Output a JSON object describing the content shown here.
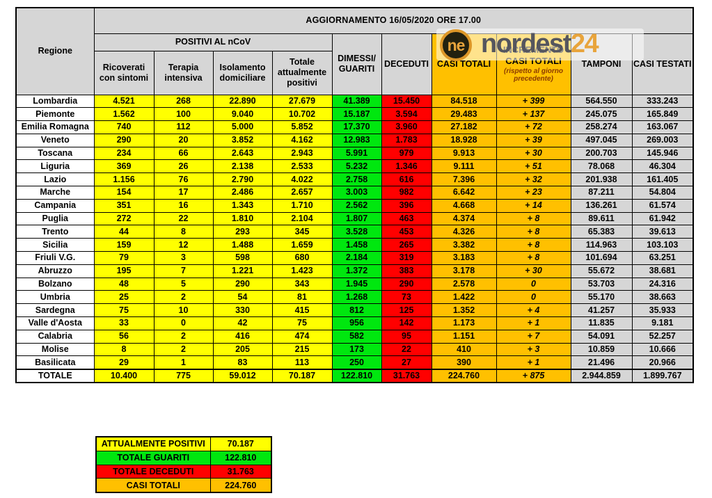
{
  "chart_data": {
    "type": "table",
    "title": "AGGIORNAMENTO 16/05/2020 ORE 17.00",
    "corner_header": "Regione",
    "group_header": "POSITIVI AL nCoV",
    "sub_headers": [
      "Ricoverati con sintomi",
      "Terapia intensiva",
      "Isolamento domiciliare",
      "Totale attualmente positivi"
    ],
    "headers": {
      "dimessi": "DIMESSI/ GUARITI",
      "deceduti": "DECEDUTI",
      "casi_totali": "CASI TOTALI",
      "incremento_line1": "INCREMENTO",
      "incremento_line2": "CASI  TOTALI",
      "incremento_note": "(rispetto al giorno precedente)",
      "tamponi": "TAMPONI",
      "casi_testati": "CASI TESTATI"
    },
    "columns": [
      "Regione",
      "Ricoverati con sintomi",
      "Terapia intensiva",
      "Isolamento domiciliare",
      "Totale attualmente positivi",
      "DIMESSI/GUARITI",
      "DECEDUTI",
      "CASI TOTALI",
      "INCREMENTO CASI TOTALI (rispetto al giorno precedente)",
      "TAMPONI",
      "CASI TESTATI"
    ],
    "rows": [
      {
        "region": "Lombardia",
        "is_total": false,
        "values": [
          "4.521",
          "268",
          "22.890",
          "27.679",
          "41.389",
          "15.450",
          "84.518",
          "+ 399",
          "564.550",
          "333.243"
        ]
      },
      {
        "region": "Piemonte",
        "is_total": false,
        "values": [
          "1.562",
          "100",
          "9.040",
          "10.702",
          "15.187",
          "3.594",
          "29.483",
          "+ 137",
          "245.075",
          "165.849"
        ]
      },
      {
        "region": "Emilia Romagna",
        "is_total": false,
        "values": [
          "740",
          "112",
          "5.000",
          "5.852",
          "17.370",
          "3.960",
          "27.182",
          "+ 72",
          "258.274",
          "163.067"
        ]
      },
      {
        "region": "Veneto",
        "is_total": false,
        "values": [
          "290",
          "20",
          "3.852",
          "4.162",
          "12.983",
          "1.783",
          "18.928",
          "+ 39",
          "497.045",
          "269.003"
        ]
      },
      {
        "region": "Toscana",
        "is_total": false,
        "values": [
          "234",
          "66",
          "2.643",
          "2.943",
          "5.991",
          "979",
          "9.913",
          "+ 30",
          "200.703",
          "145.946"
        ]
      },
      {
        "region": "Liguria",
        "is_total": false,
        "values": [
          "369",
          "26",
          "2.138",
          "2.533",
          "5.232",
          "1.346",
          "9.111",
          "+ 51",
          "78.068",
          "46.304"
        ]
      },
      {
        "region": "Lazio",
        "is_total": false,
        "values": [
          "1.156",
          "76",
          "2.790",
          "4.022",
          "2.758",
          "616",
          "7.396",
          "+ 32",
          "201.938",
          "161.405"
        ]
      },
      {
        "region": "Marche",
        "is_total": false,
        "values": [
          "154",
          "17",
          "2.486",
          "2.657",
          "3.003",
          "982",
          "6.642",
          "+ 23",
          "87.211",
          "54.804"
        ]
      },
      {
        "region": "Campania",
        "is_total": false,
        "values": [
          "351",
          "16",
          "1.343",
          "1.710",
          "2.562",
          "396",
          "4.668",
          "+ 14",
          "136.261",
          "61.574"
        ]
      },
      {
        "region": "Puglia",
        "is_total": false,
        "values": [
          "272",
          "22",
          "1.810",
          "2.104",
          "1.807",
          "463",
          "4.374",
          "+ 8",
          "89.611",
          "61.942"
        ]
      },
      {
        "region": "Trento",
        "is_total": false,
        "values": [
          "44",
          "8",
          "293",
          "345",
          "3.528",
          "453",
          "4.326",
          "+ 8",
          "65.383",
          "39.613"
        ]
      },
      {
        "region": "Sicilia",
        "is_total": false,
        "values": [
          "159",
          "12",
          "1.488",
          "1.659",
          "1.458",
          "265",
          "3.382",
          "+ 8",
          "114.963",
          "103.103"
        ]
      },
      {
        "region": "Friuli V.G.",
        "is_total": false,
        "values": [
          "79",
          "3",
          "598",
          "680",
          "2.184",
          "319",
          "3.183",
          "+ 8",
          "101.694",
          "63.251"
        ]
      },
      {
        "region": "Abruzzo",
        "is_total": false,
        "values": [
          "195",
          "7",
          "1.221",
          "1.423",
          "1.372",
          "383",
          "3.178",
          "+ 30",
          "55.672",
          "38.681"
        ]
      },
      {
        "region": "Bolzano",
        "is_total": false,
        "values": [
          "48",
          "5",
          "290",
          "343",
          "1.945",
          "290",
          "2.578",
          "0",
          "53.703",
          "24.316"
        ]
      },
      {
        "region": "Umbria",
        "is_total": false,
        "values": [
          "25",
          "2",
          "54",
          "81",
          "1.268",
          "73",
          "1.422",
          "0",
          "55.170",
          "38.663"
        ]
      },
      {
        "region": "Sardegna",
        "is_total": false,
        "values": [
          "75",
          "10",
          "330",
          "415",
          "812",
          "125",
          "1.352",
          "+ 4",
          "41.257",
          "35.933"
        ]
      },
      {
        "region": "Valle d'Aosta",
        "is_total": false,
        "values": [
          "33",
          "0",
          "42",
          "75",
          "956",
          "142",
          "1.173",
          "+ 1",
          "11.835",
          "9.181"
        ]
      },
      {
        "region": "Calabria",
        "is_total": false,
        "values": [
          "56",
          "2",
          "416",
          "474",
          "582",
          "95",
          "1.151",
          "+ 7",
          "54.091",
          "52.257"
        ]
      },
      {
        "region": "Molise",
        "is_total": false,
        "values": [
          "8",
          "2",
          "205",
          "215",
          "173",
          "22",
          "410",
          "+ 3",
          "10.859",
          "10.666"
        ]
      },
      {
        "region": "Basilicata",
        "is_total": false,
        "values": [
          "29",
          "1",
          "83",
          "113",
          "250",
          "27",
          "390",
          "+ 1",
          "21.496",
          "20.966"
        ]
      },
      {
        "region": "TOTALE",
        "is_total": true,
        "values": [
          "10.400",
          "775",
          "59.012",
          "70.187",
          "122.810",
          "31.763",
          "224.760",
          "+ 875",
          "2.944.859",
          "1.899.767"
        ]
      }
    ],
    "summary": [
      {
        "label": "ATTUALMENTE POSITIVI",
        "value": "70.187",
        "color": "yellow"
      },
      {
        "label": "TOTALE GUARITI",
        "value": "122.810",
        "color": "green"
      },
      {
        "label": "TOTALE DECEDUTI",
        "value": "31.763",
        "color": "red"
      },
      {
        "label": "CASI TOTALI",
        "value": "224.760",
        "color": "orange"
      }
    ]
  },
  "logo": {
    "badge": "ne",
    "name": "nordest",
    "number": "24"
  },
  "colors": {
    "positivi_yellow": "#ffff00",
    "guariti_green": "#00e70f",
    "deceduti_red": "#ff0000",
    "casi_totali_orange": "#ffc000",
    "header_gray": "#d6d6d6",
    "incremento_note_text": "#8b3a00",
    "logo_orange": "#e8a43c",
    "logo_gray": "#55565e"
  }
}
